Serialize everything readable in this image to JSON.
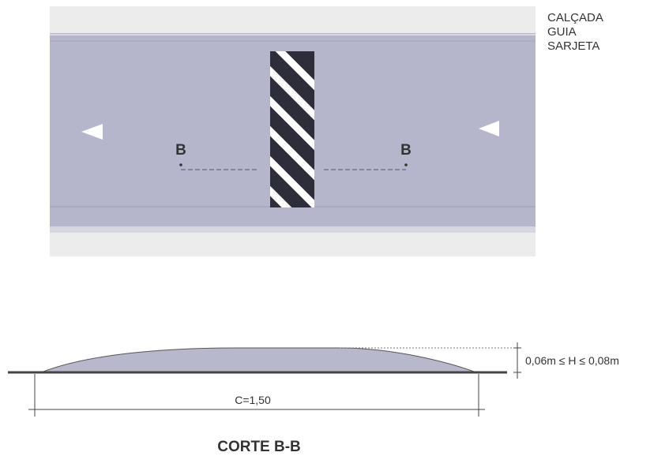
{
  "plan": {
    "labels": {
      "calcada": "CALÇADA",
      "guia": "GUIA",
      "sarjeta": "SARJETA"
    },
    "section_marker_left": "B",
    "section_marker_right": "B",
    "colors": {
      "road": "#b5b5cc",
      "sidewalk": "#e8e8e8",
      "stripe_dark": "#2e2e3a",
      "stripe_light": "#ffffff"
    }
  },
  "section": {
    "height_label": "0,06m ≤ H ≤ 0,08m",
    "length_label": "C=1,50",
    "title": "CORTE B-B",
    "colors": {
      "hump_fill": "#b8b8cc",
      "ground": "#444444"
    }
  }
}
